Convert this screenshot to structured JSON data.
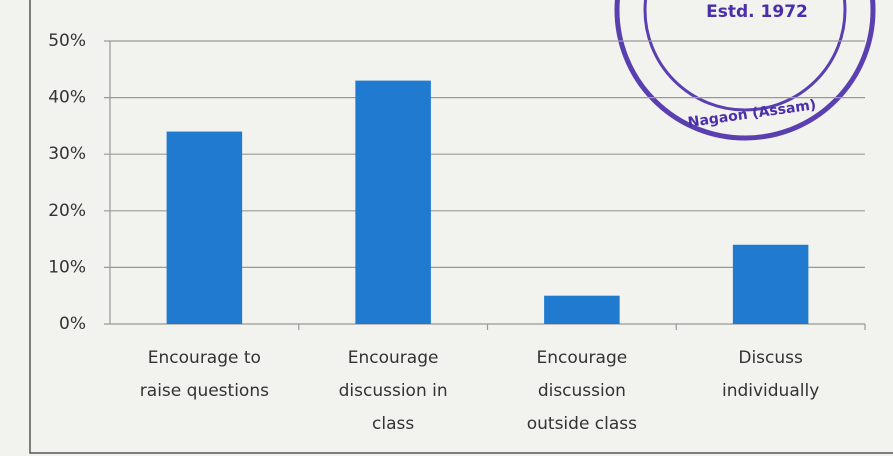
{
  "chart_data": {
    "type": "bar",
    "categories": [
      [
        "Encourage to",
        "raise questions"
      ],
      [
        "Encourage",
        "discussion in",
        "class"
      ],
      [
        "Encourage",
        "discussion",
        "outside class"
      ],
      [
        "Discuss",
        "individually"
      ]
    ],
    "values": [
      34,
      43,
      5,
      14
    ],
    "color": "#1f7ad0",
    "ylim": [
      0,
      50
    ],
    "yticks": [
      {
        "value": 0,
        "label": "0%"
      },
      {
        "value": 10,
        "label": "10%"
      },
      {
        "value": 20,
        "label": "20%"
      },
      {
        "value": 30,
        "label": "30%"
      },
      {
        "value": 40,
        "label": "40%"
      },
      {
        "value": 50,
        "label": "50%"
      }
    ],
    "grid": true
  },
  "stamp": {
    "texts": [
      "Estd. 1972",
      "Nagaon (Assam)"
    ]
  }
}
